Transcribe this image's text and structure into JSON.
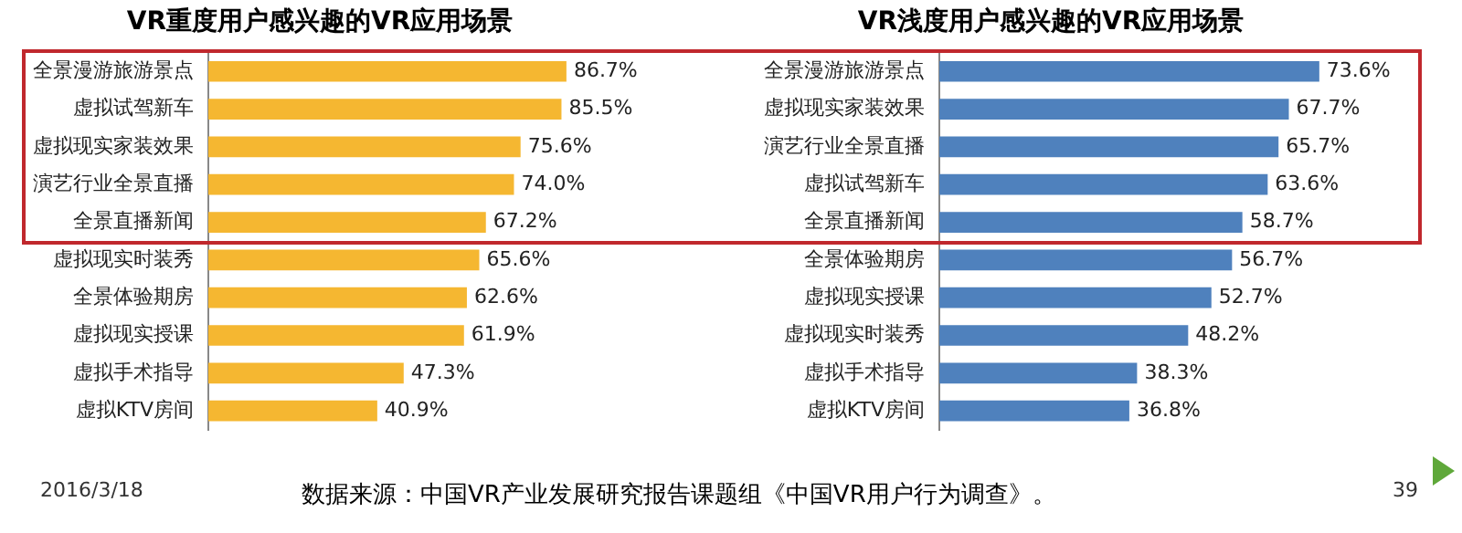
{
  "chart_data": [
    {
      "type": "bar",
      "orientation": "horizontal",
      "title": "VR重度用户感兴趣的VR应用场景",
      "categories": [
        "全景漫游旅游景点",
        "虚拟试驾新车",
        "虚拟现实家装效果",
        "演艺行业全景直播",
        "全景直播新闻",
        "虚拟现实时装秀",
        "全景体验期房",
        "虚拟现实授课",
        "虚拟手术指导",
        "虚拟KTV房间"
      ],
      "values": [
        86.7,
        85.5,
        75.6,
        74.0,
        67.2,
        65.6,
        62.6,
        61.9,
        47.3,
        40.9
      ],
      "value_labels": [
        "86.7%",
        "85.5%",
        "75.6%",
        "74.0%",
        "67.2%",
        "65.6%",
        "62.6%",
        "61.9%",
        "47.3%",
        "40.9%"
      ],
      "color": "#f5b731",
      "grid": false,
      "legend": false,
      "annotations": [
        "2016/3/18",
        "数据来源：中国VR产业发展研究报告课题组《中国VR用户行为调查》。"
      ]
    },
    {
      "type": "bar",
      "orientation": "horizontal",
      "title": "VR浅度用户感兴趣的VR应用场景",
      "categories": [
        "全景漫游旅游景点",
        "虚拟现实家装效果",
        "演艺行业全景直播",
        "虚拟试驾新车",
        "全景直播新闻",
        "全景体验期房",
        "虚拟现实授课",
        "虚拟现实时装秀",
        "虚拟手术指导",
        "虚拟KTV房间"
      ],
      "values": [
        73.6,
        67.7,
        65.7,
        63.6,
        58.7,
        56.7,
        52.7,
        48.2,
        38.3,
        36.8
      ],
      "value_labels": [
        "73.6%",
        "67.7%",
        "65.7%",
        "63.6%",
        "58.7%",
        "56.7%",
        "52.7%",
        "48.2%",
        "38.3%",
        "36.8%"
      ],
      "color": "#4f81bd",
      "grid": false,
      "legend": false,
      "annotations": [
        "39"
      ]
    }
  ]
}
